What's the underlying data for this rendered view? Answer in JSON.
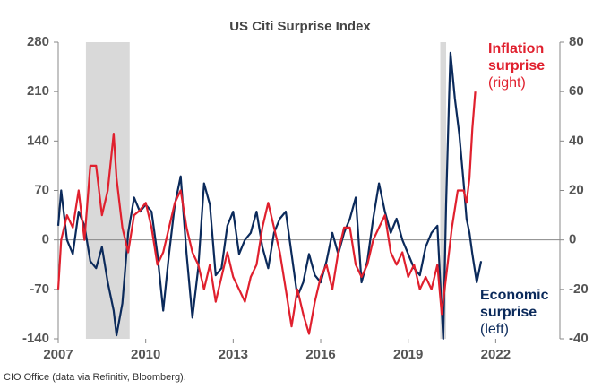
{
  "chart_data": {
    "type": "line",
    "title": "US Citi Surprise Index",
    "source": "CIO Office (data via Refinitiv, Bloomberg).",
    "xlim": [
      2007,
      2024.2
    ],
    "xticks": [
      2007,
      2010,
      2013,
      2016,
      2019,
      2022
    ],
    "ylim": [
      -140,
      280
    ],
    "yticks": [
      -140,
      -70,
      0,
      70,
      140,
      210,
      280
    ],
    "y2lim": [
      -40,
      80
    ],
    "y2ticks": [
      -40,
      -20,
      0,
      20,
      40,
      60,
      80
    ],
    "shaded_periods": [
      [
        2007.95,
        2009.45
      ],
      [
        2020.1,
        2020.3
      ]
    ],
    "shade_color": "#d9d9d9",
    "series": [
      {
        "name": "Economic surprise (left)",
        "name_lines": [
          "Economic",
          "surprise",
          "(left)"
        ],
        "color": "#0b2a5b",
        "axis": "y",
        "x": [
          2007.0,
          2007.1,
          2007.3,
          2007.5,
          2007.7,
          2007.9,
          2008.1,
          2008.3,
          2008.5,
          2008.7,
          2008.9,
          2009.0,
          2009.2,
          2009.4,
          2009.6,
          2009.8,
          2010.0,
          2010.2,
          2010.4,
          2010.6,
          2010.8,
          2011.0,
          2011.2,
          2011.4,
          2011.6,
          2011.8,
          2012.0,
          2012.2,
          2012.4,
          2012.6,
          2012.8,
          2013.0,
          2013.2,
          2013.4,
          2013.6,
          2013.8,
          2014.0,
          2014.2,
          2014.4,
          2014.6,
          2014.8,
          2015.0,
          2015.2,
          2015.4,
          2015.6,
          2015.8,
          2016.0,
          2016.2,
          2016.4,
          2016.6,
          2016.8,
          2017.0,
          2017.2,
          2017.4,
          2017.6,
          2017.8,
          2018.0,
          2018.2,
          2018.4,
          2018.6,
          2018.8,
          2019.0,
          2019.2,
          2019.4,
          2019.6,
          2019.8,
          2020.0,
          2020.1,
          2020.2,
          2020.3,
          2020.4,
          2020.45,
          2020.6,
          2020.75,
          2020.9,
          2021.0,
          2021.1,
          2021.2,
          2021.35,
          2021.5
        ],
        "values": [
          20,
          70,
          0,
          -20,
          40,
          20,
          -30,
          -40,
          -10,
          -60,
          -100,
          -135,
          -90,
          10,
          60,
          40,
          50,
          40,
          -20,
          -100,
          -20,
          50,
          90,
          -20,
          -110,
          -40,
          80,
          50,
          -50,
          -40,
          20,
          40,
          -20,
          0,
          10,
          40,
          -10,
          -40,
          10,
          30,
          40,
          -20,
          -80,
          -60,
          -20,
          -50,
          -60,
          -30,
          10,
          -20,
          10,
          30,
          60,
          -60,
          -30,
          30,
          80,
          40,
          10,
          30,
          0,
          -20,
          -40,
          -50,
          -10,
          10,
          20,
          -60,
          -140,
          50,
          200,
          265,
          200,
          150,
          80,
          30,
          10,
          -20,
          -60,
          -30
        ]
      },
      {
        "name": "Inflation surprise (right)",
        "name_lines": [
          "Inflation",
          "surprise",
          "(right)"
        ],
        "color": "#e0202e",
        "axis": "y2",
        "x": [
          2007.0,
          2007.1,
          2007.3,
          2007.5,
          2007.7,
          2007.9,
          2008.1,
          2008.3,
          2008.5,
          2008.7,
          2008.9,
          2009.0,
          2009.2,
          2009.4,
          2009.6,
          2009.8,
          2010.0,
          2010.2,
          2010.4,
          2010.6,
          2010.8,
          2011.0,
          2011.2,
          2011.4,
          2011.6,
          2011.8,
          2012.0,
          2012.2,
          2012.4,
          2012.6,
          2012.8,
          2013.0,
          2013.2,
          2013.4,
          2013.6,
          2013.8,
          2014.0,
          2014.2,
          2014.4,
          2014.6,
          2014.8,
          2015.0,
          2015.2,
          2015.4,
          2015.6,
          2015.8,
          2016.0,
          2016.2,
          2016.4,
          2016.6,
          2016.8,
          2017.0,
          2017.2,
          2017.4,
          2017.6,
          2017.8,
          2018.0,
          2018.2,
          2018.4,
          2018.6,
          2018.8,
          2019.0,
          2019.2,
          2019.4,
          2019.6,
          2019.8,
          2020.0,
          2020.15,
          2020.3,
          2020.5,
          2020.7,
          2020.9,
          2021.0,
          2021.1,
          2021.2,
          2021.3
        ],
        "values": [
          -20,
          0,
          10,
          5,
          20,
          0,
          30,
          30,
          10,
          20,
          43,
          25,
          5,
          -5,
          10,
          12,
          15,
          5,
          -10,
          -5,
          5,
          15,
          20,
          5,
          -5,
          -10,
          -20,
          -10,
          -25,
          -15,
          -5,
          -15,
          -20,
          -25,
          -15,
          -10,
          5,
          15,
          5,
          -5,
          -20,
          -35,
          -20,
          -30,
          -38,
          -25,
          -15,
          -10,
          -20,
          -5,
          5,
          5,
          -10,
          -15,
          -10,
          0,
          5,
          10,
          -5,
          -10,
          -5,
          -15,
          -10,
          -20,
          -15,
          -20,
          -10,
          -30,
          -15,
          5,
          20,
          20,
          15,
          25,
          45,
          60
        ]
      }
    ]
  }
}
